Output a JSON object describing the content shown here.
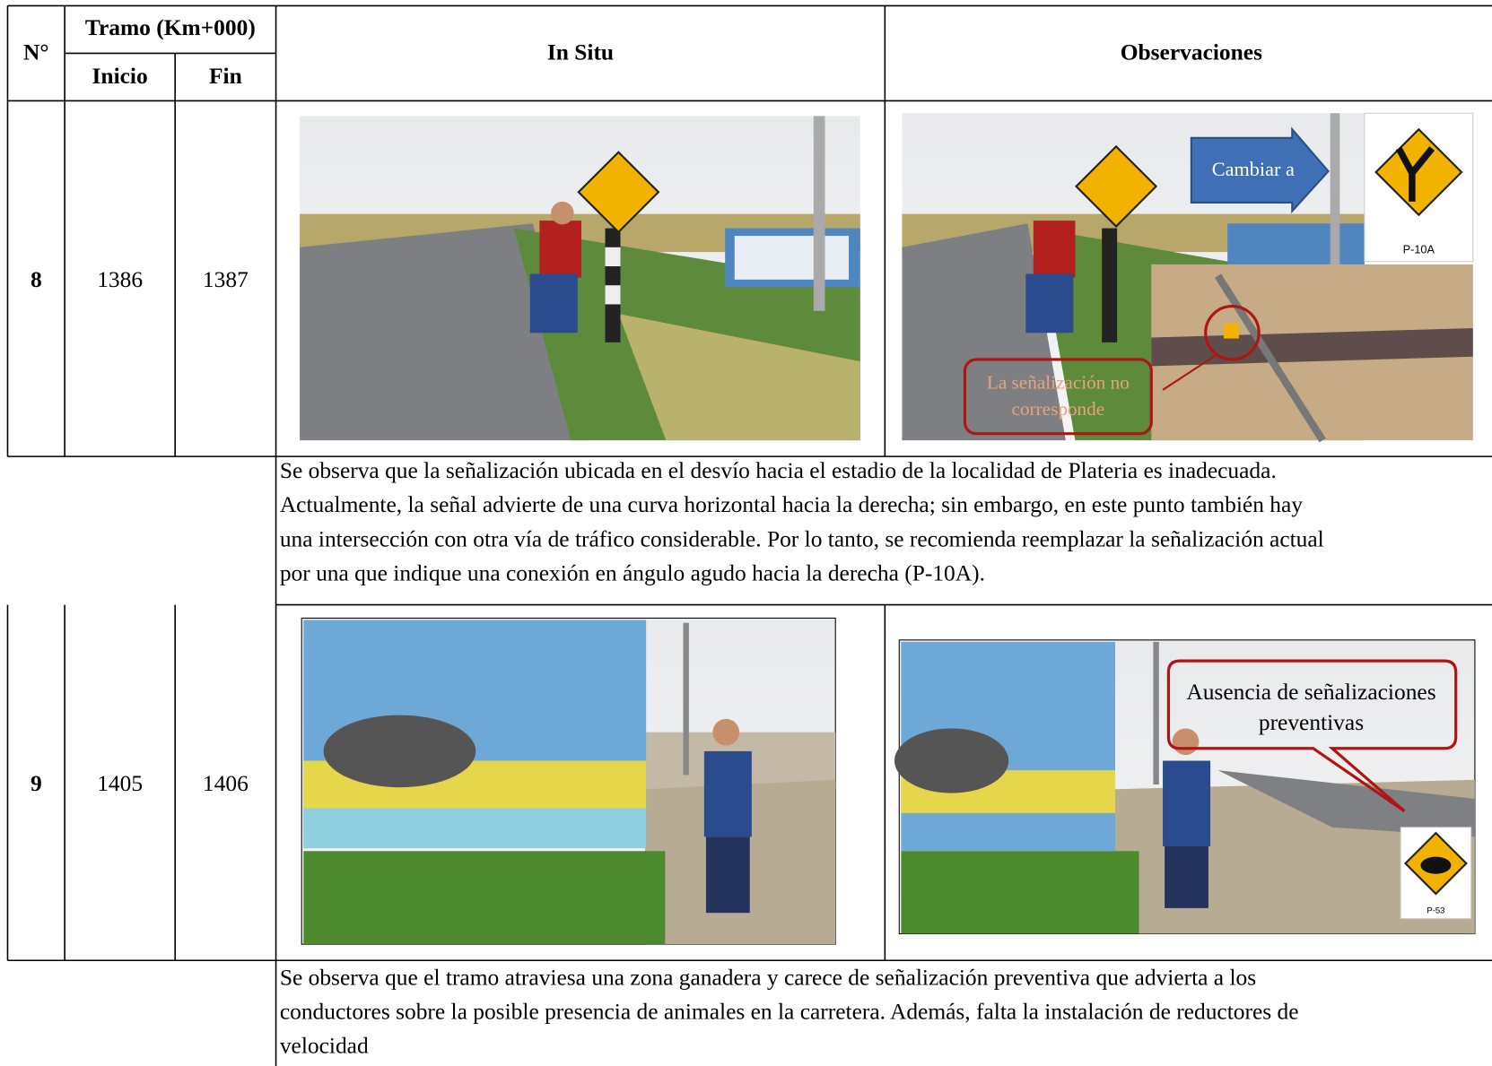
{
  "header": {
    "number": "N°",
    "tramo": "Tramo (Km+000)",
    "inicio": "Inicio",
    "fin": "Fin",
    "in_situ": "In Situ",
    "observaciones": "Observaciones"
  },
  "rows": [
    {
      "number": 8,
      "inicio": 1386,
      "fin": 1387,
      "arrow_label": "Cambiar a",
      "sign_code": "P-10A",
      "callout": [
        "La señalización no",
        "corresponde"
      ],
      "description": [
        "Se observa que la señalización ubicada en el desvío hacia el estadio de la localidad de Plateria es inadecuada.",
        "Actualmente, la señal advierte de una curva horizontal hacia la derecha; sin embargo, en este punto también hay",
        "una intersección con otra vía de tráfico considerable. Por lo tanto, se recomienda reemplazar la señalización actual",
        "por una que indique una conexión en ángulo agudo hacia la derecha (P-10A)."
      ]
    },
    {
      "number": 9,
      "inicio": 1405,
      "fin": 1406,
      "sign_code": "P-53",
      "callout": [
        "Ausencia de señalizaciones",
        "preventivas"
      ],
      "description": [
        "Se observa que el tramo atraviesa una zona ganadera y carece de señalización preventiva que advierta a los",
        "conductores sobre la posible presencia de animales en la carretera. Además, falta la instalación de reductores de",
        "velocidad"
      ]
    }
  ]
}
